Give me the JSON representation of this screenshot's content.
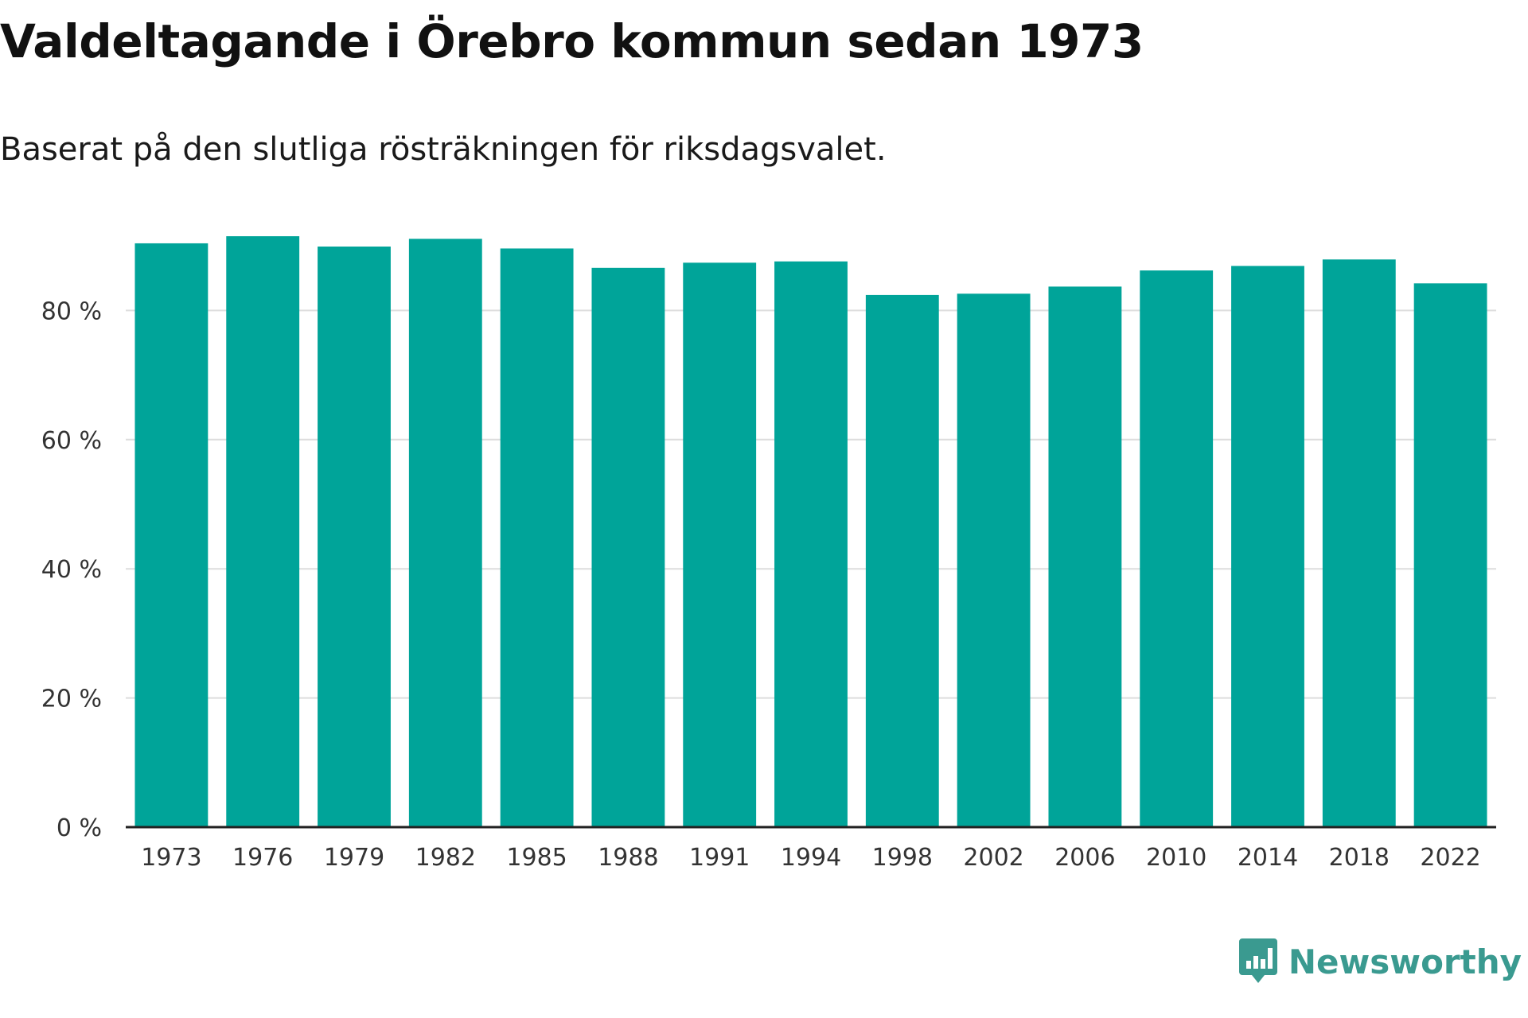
{
  "title": "Valdeltagande i Örebro kommun sedan 1973",
  "subtitle": "Baserat på den slutliga rösträkningen för riksdagsvalet.",
  "brand": {
    "name": "Newsworthy",
    "icon": "newsworthy-logo-icon",
    "color": "#3a9a90"
  },
  "colors": {
    "bar": "#00a499",
    "grid": "#dddddd",
    "axis": "#222222"
  },
  "chart_data": {
    "type": "bar",
    "categories": [
      "1973",
      "1976",
      "1979",
      "1982",
      "1985",
      "1988",
      "1991",
      "1994",
      "1998",
      "2002",
      "2006",
      "2010",
      "2014",
      "2018",
      "2022"
    ],
    "values": [
      90.4,
      91.5,
      89.9,
      91.1,
      89.6,
      86.6,
      87.4,
      87.6,
      82.4,
      82.6,
      83.7,
      86.2,
      86.9,
      87.9,
      84.2
    ],
    "yticks": [
      0,
      20,
      40,
      60,
      80
    ],
    "ytick_labels": [
      "0 %",
      "20 %",
      "40 %",
      "60 %",
      "80 %"
    ],
    "ylim": [
      0,
      100
    ],
    "grid": true
  }
}
